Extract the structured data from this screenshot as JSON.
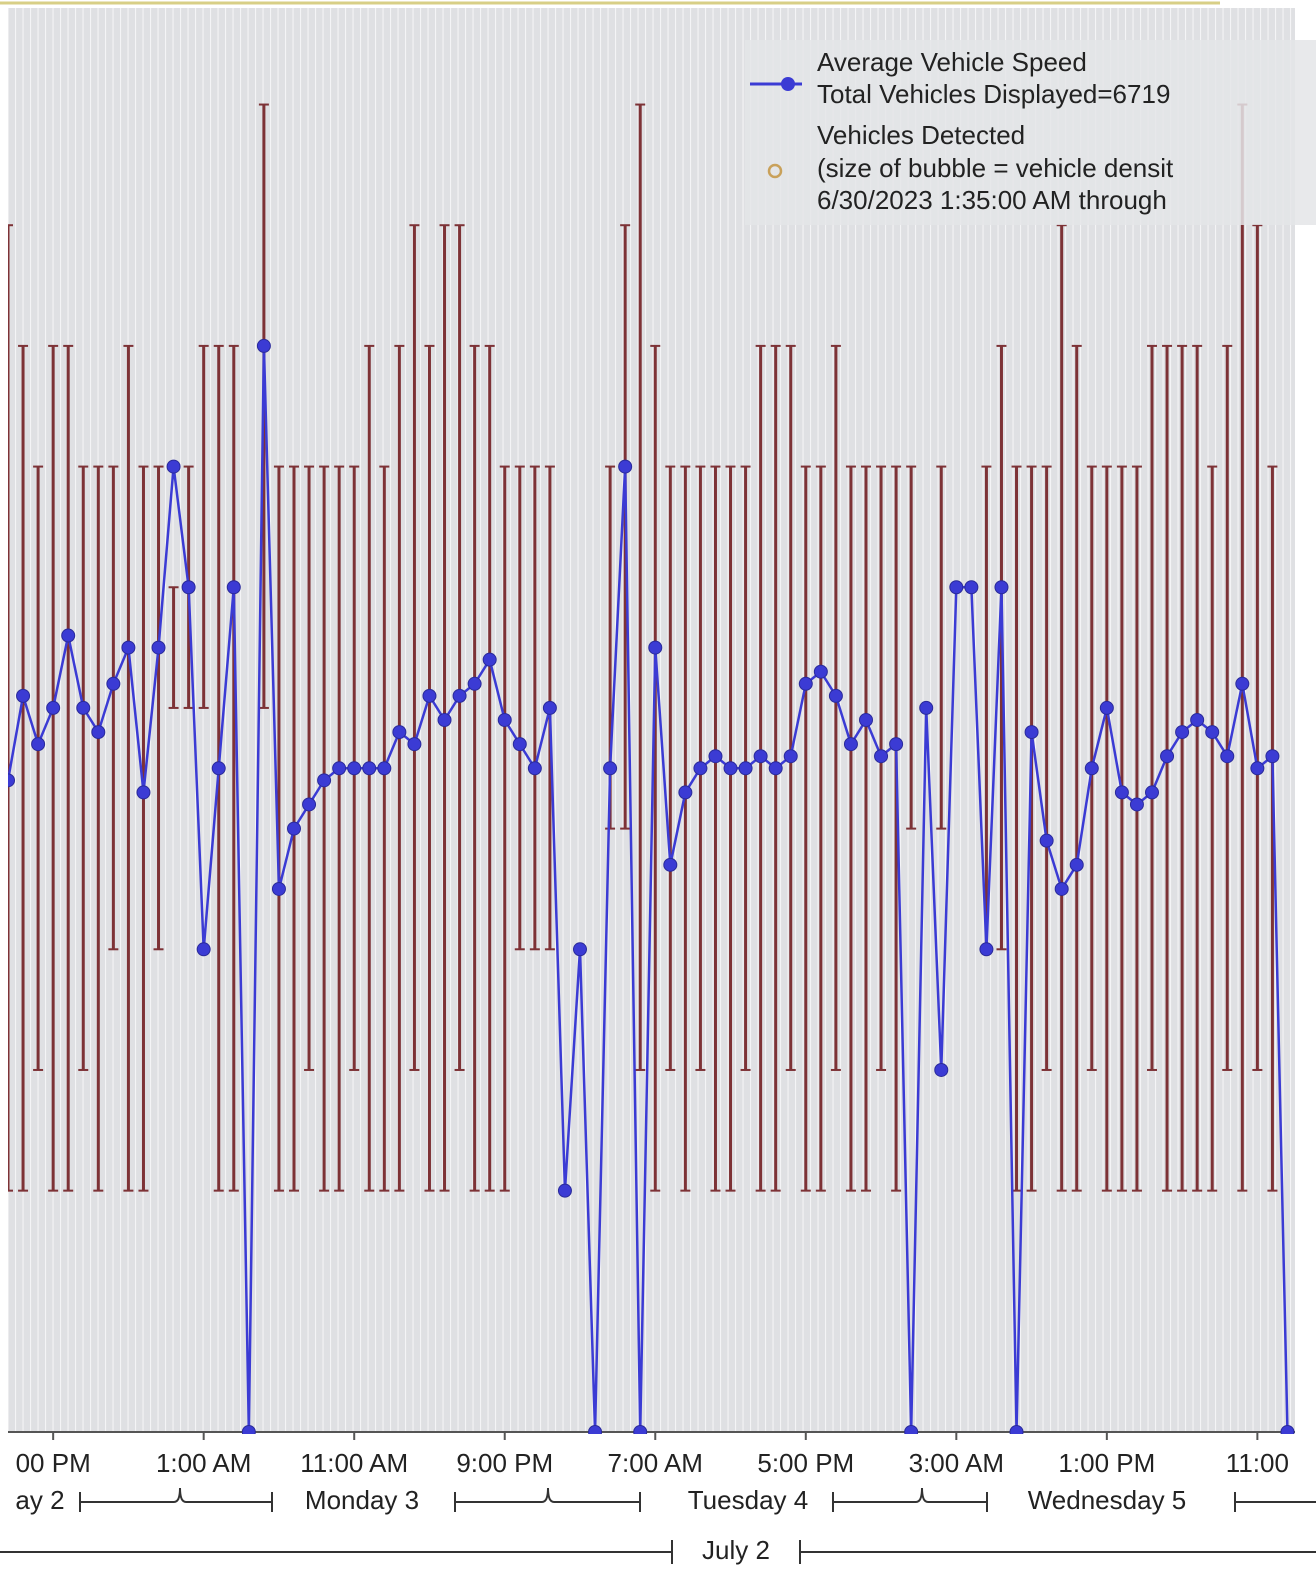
{
  "chart_data": {
    "type": "line",
    "x": [
      0,
      1,
      2,
      3,
      4,
      5,
      6,
      7,
      8,
      9,
      10,
      11,
      12,
      13,
      14,
      15,
      16,
      17,
      18,
      19,
      20,
      21,
      22,
      23,
      24,
      25,
      26,
      27,
      28,
      29,
      30,
      31,
      32,
      33,
      34,
      35,
      36,
      37,
      38,
      39,
      40,
      41,
      42,
      43,
      44,
      45,
      46,
      47,
      48,
      49,
      50,
      51,
      52,
      53,
      54,
      55,
      56,
      57,
      58,
      59,
      60,
      61,
      62,
      63,
      64,
      65,
      66,
      67,
      68,
      69,
      70,
      71,
      72,
      73,
      74,
      75,
      76,
      77,
      78,
      79,
      80,
      81,
      82,
      83,
      84,
      85
    ],
    "xlim": [
      0,
      85.5
    ],
    "xticks": [
      {
        "value": 3,
        "label": "00 PM"
      },
      {
        "value": 13,
        "label": "1:00 AM"
      },
      {
        "value": 23,
        "label": "11:00 AM"
      },
      {
        "value": 33,
        "label": "9:00 PM"
      },
      {
        "value": 43,
        "label": "7:00 AM"
      },
      {
        "value": 53,
        "label": "5:00 PM"
      },
      {
        "value": 63,
        "label": "3:00 AM"
      },
      {
        "value": 73,
        "label": "1:00 PM"
      },
      {
        "value": 83,
        "label": "11:00"
      }
    ],
    "x_group_labels": [
      "ay 2",
      "Monday 3",
      "Tuesday 4",
      "Wednesday 5"
    ],
    "x_supergroup_label": "July 2",
    "ylim": [
      0,
      118
    ],
    "series": [
      {
        "name": "Average Vehicle Speed",
        "color": "#3b3bd4",
        "values": [
          54,
          61,
          57,
          60,
          66,
          60,
          58,
          62,
          65,
          53,
          65,
          80,
          70,
          40,
          55,
          70,
          0,
          90,
          45,
          50,
          52,
          54,
          55,
          55,
          55,
          55,
          58,
          57,
          61,
          59,
          61,
          62,
          64,
          59,
          57,
          55,
          60,
          20,
          40,
          0,
          55,
          80,
          0,
          65,
          47,
          53,
          55,
          56,
          55,
          55,
          56,
          55,
          56,
          62,
          63,
          61,
          57,
          59,
          56,
          57,
          0,
          60,
          30,
          70,
          70,
          40,
          70,
          0,
          58,
          49,
          45,
          47,
          55,
          60,
          53,
          52,
          53,
          56,
          58,
          59,
          58,
          56,
          62,
          55,
          56,
          0
        ]
      },
      {
        "name": "Vehicles Detected",
        "color": "#7d3236",
        "marker_color": "#c9a15a",
        "low": [
          20,
          20,
          30,
          20,
          20,
          30,
          20,
          40,
          20,
          20,
          40,
          60,
          60,
          60,
          20,
          20,
          null,
          60,
          20,
          20,
          30,
          20,
          20,
          30,
          20,
          20,
          20,
          30,
          20,
          20,
          30,
          20,
          20,
          20,
          40,
          40,
          40,
          null,
          null,
          null,
          50,
          50,
          30,
          20,
          30,
          20,
          30,
          20,
          20,
          30,
          20,
          20,
          30,
          20,
          20,
          30,
          20,
          20,
          30,
          20,
          50,
          null,
          50,
          null,
          null,
          40,
          40,
          20,
          20,
          30,
          20,
          20,
          30,
          20,
          20,
          20,
          30,
          20,
          20,
          20,
          20,
          30,
          20,
          30,
          20,
          null
        ],
        "high": [
          100,
          90,
          80,
          90,
          90,
          80,
          80,
          80,
          90,
          80,
          80,
          70,
          80,
          90,
          90,
          90,
          null,
          110,
          80,
          80,
          80,
          80,
          80,
          80,
          90,
          80,
          90,
          100,
          90,
          100,
          100,
          90,
          90,
          80,
          80,
          80,
          80,
          null,
          null,
          null,
          80,
          100,
          110,
          90,
          80,
          80,
          80,
          80,
          80,
          80,
          90,
          90,
          90,
          80,
          80,
          90,
          80,
          80,
          80,
          80,
          80,
          null,
          80,
          null,
          null,
          80,
          90,
          80,
          80,
          80,
          100,
          90,
          80,
          80,
          80,
          80,
          90,
          90,
          90,
          90,
          80,
          90,
          110,
          100,
          80,
          null
        ]
      }
    ],
    "legend_notes": [
      "Total Vehicles Displayed=6719",
      "(size of bubble = vehicle densit",
      "6/30/2023 1:35:00 AM through"
    ]
  }
}
